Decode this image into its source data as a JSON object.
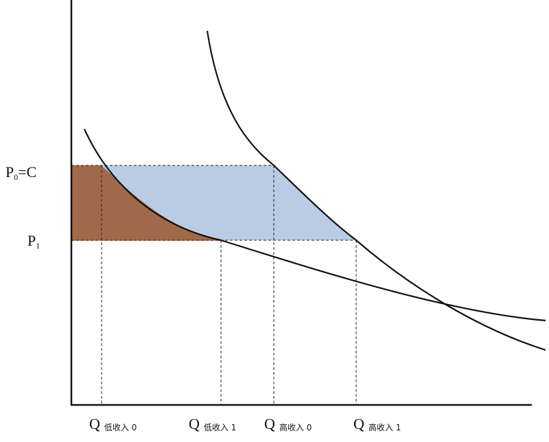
{
  "y_labels": [
    {
      "main": "P",
      "sub": "0",
      "rest": "=C"
    },
    {
      "main": "P",
      "sub": "1"
    }
  ],
  "x_labels": [
    {
      "main": "Q",
      "sub": "低收入 0"
    },
    {
      "main": "Q",
      "sub": "低收入 1"
    },
    {
      "main": "Q",
      "sub": "高收入 0"
    },
    {
      "main": "Q",
      "sub": "高收入 1"
    }
  ]
}
